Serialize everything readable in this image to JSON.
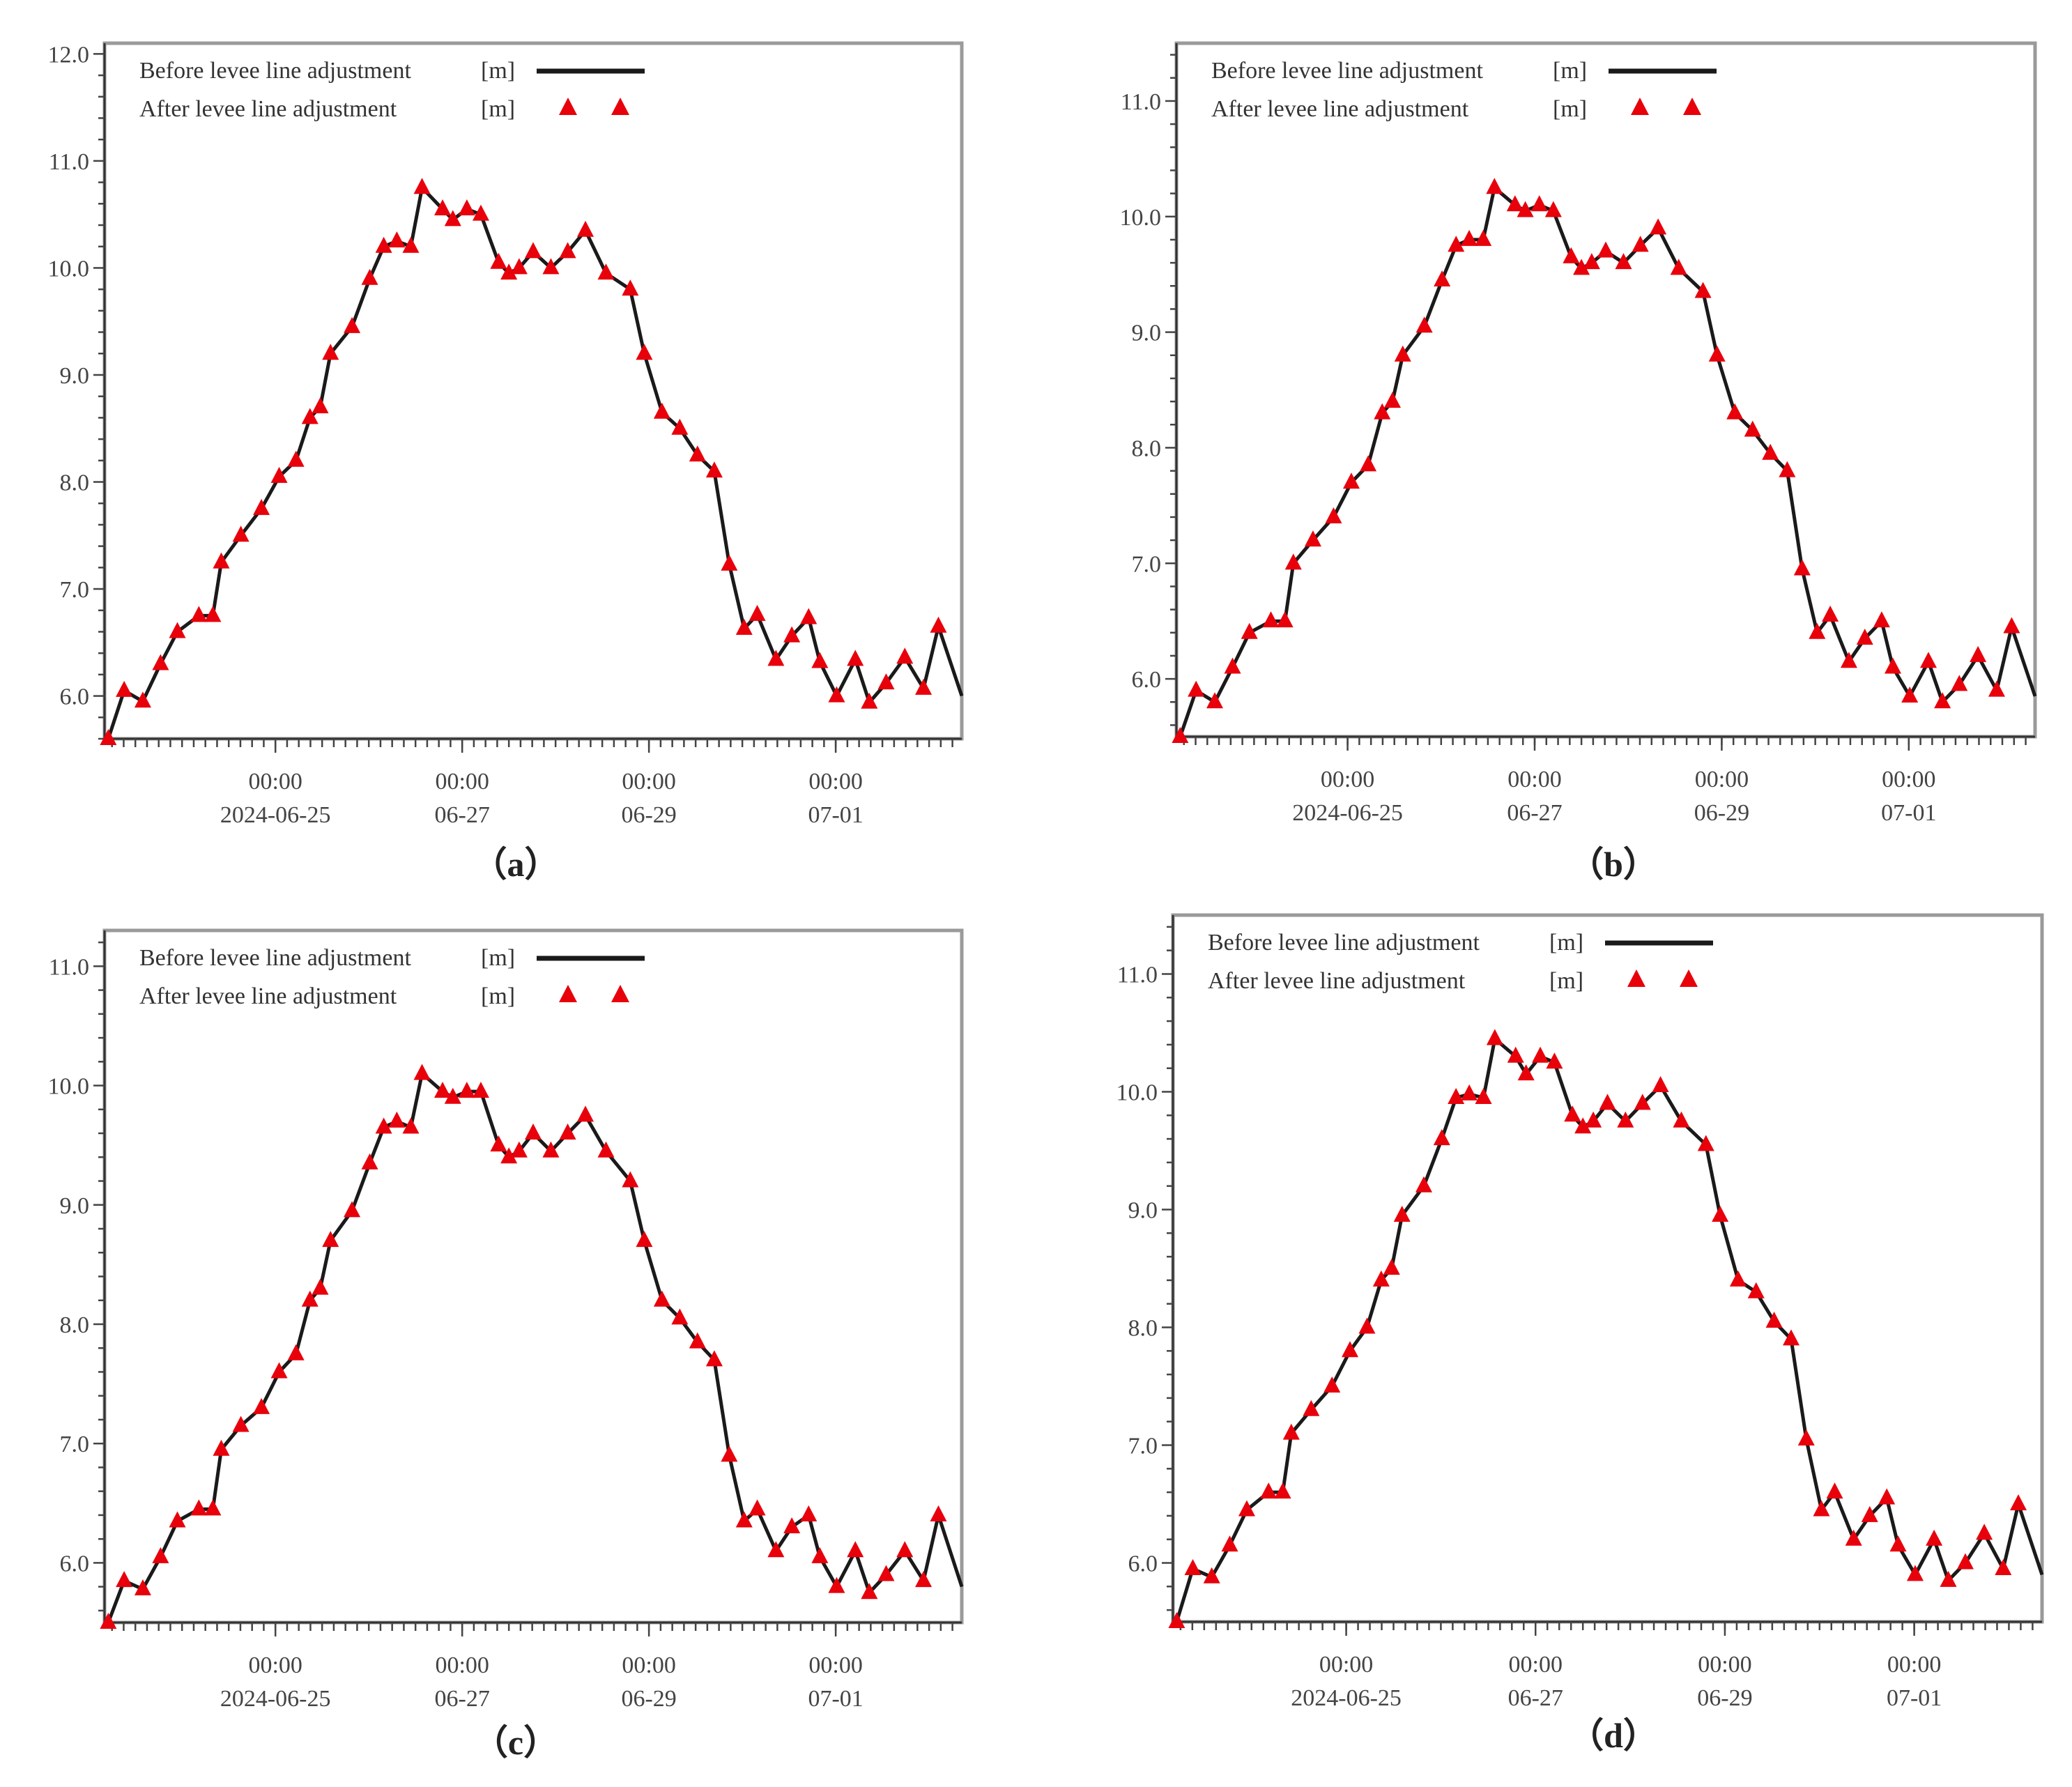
{
  "figure": {
    "captions": [
      "（a）",
      "（b）",
      "（c）",
      "（d）"
    ],
    "legend": {
      "before_label": "Before levee line adjustment",
      "before_unit": "[m]",
      "after_label": "After levee line adjustment",
      "after_unit": "[m]",
      "before_color": "#1a1a1a",
      "after_color": "#e8000b"
    },
    "x_ticks": [
      {
        "day": 1.83,
        "line1": "00:00",
        "line2": "2024-06-25"
      },
      {
        "day": 3.83,
        "line1": "00:00",
        "line2": "06-27"
      },
      {
        "day": 5.83,
        "line1": "00:00",
        "line2": "06-29"
      },
      {
        "day": 7.83,
        "line1": "00:00",
        "line2": "07-01"
      }
    ]
  },
  "chart_data": [
    {
      "type": "line",
      "panel": "a",
      "title": "（a）",
      "xlabel": "",
      "ylabel": "",
      "x_unit": "days from plot start (~2024-06-23 04:00)",
      "xlim": [
        0,
        9.18
      ],
      "ylim": [
        5.6,
        12.1
      ],
      "y_ticks": [
        6.0,
        7.0,
        8.0,
        9.0,
        10.0,
        11.0,
        12.0
      ],
      "x_tick_labels": [
        "00:00\n2024-06-25",
        "00:00\n06-27",
        "00:00\n06-29",
        "00:00\n07-01"
      ],
      "legend_position": "upper left",
      "grid": false,
      "x": [
        0.04,
        0.21,
        0.41,
        0.6,
        0.78,
        1.01,
        1.16,
        1.25,
        1.46,
        1.68,
        1.87,
        2.05,
        2.2,
        2.31,
        2.42,
        2.65,
        2.84,
        2.99,
        3.13,
        3.28,
        3.4,
        3.62,
        3.73,
        3.88,
        4.03,
        4.22,
        4.33,
        4.44,
        4.59,
        4.78,
        4.96,
        5.15,
        5.37,
        5.63,
        5.78,
        5.97,
        6.16,
        6.35,
        6.53,
        6.69,
        6.85,
        6.99,
        7.19,
        7.36,
        7.54,
        7.66,
        7.84,
        8.04,
        8.19,
        8.37,
        8.57,
        8.77,
        8.93
      ],
      "series": [
        {
          "name": "Before levee line adjustment [m]",
          "values": [
            5.6,
            6.05,
            5.95,
            6.3,
            6.6,
            6.75,
            6.75,
            7.25,
            7.5,
            7.75,
            8.05,
            8.2,
            8.6,
            8.7,
            9.2,
            9.45,
            9.9,
            10.2,
            10.25,
            10.2,
            10.75,
            10.55,
            10.45,
            10.55,
            10.5,
            10.05,
            9.95,
            10.0,
            10.15,
            10.0,
            10.15,
            10.35,
            9.95,
            9.8,
            9.2,
            8.65,
            8.5,
            8.25,
            8.1,
            7.23,
            6.63,
            6.76,
            6.34,
            6.56,
            6.73,
            6.32,
            6.0,
            6.34,
            5.94,
            6.12,
            6.36,
            6.07,
            6.65
          ]
        },
        {
          "name": "After levee line adjustment [m]",
          "values": [
            5.6,
            6.05,
            5.95,
            6.3,
            6.6,
            6.75,
            6.75,
            7.25,
            7.5,
            7.75,
            8.05,
            8.2,
            8.6,
            8.7,
            9.2,
            9.45,
            9.9,
            10.2,
            10.25,
            10.2,
            10.75,
            10.55,
            10.45,
            10.55,
            10.5,
            10.05,
            9.95,
            10.0,
            10.15,
            10.0,
            10.15,
            10.35,
            9.95,
            9.8,
            9.2,
            8.65,
            8.5,
            8.25,
            8.1,
            7.23,
            6.63,
            6.76,
            6.34,
            6.56,
            6.73,
            6.32,
            6.0,
            6.34,
            5.94,
            6.12,
            6.36,
            6.07,
            6.65
          ]
        }
      ],
      "end_value": 6.0
    },
    {
      "type": "line",
      "panel": "b",
      "title": "（b）",
      "xlabel": "",
      "ylabel": "",
      "xlim": [
        0,
        9.18
      ],
      "ylim": [
        5.5,
        11.5
      ],
      "y_ticks": [
        6.0,
        7.0,
        8.0,
        9.0,
        10.0,
        11.0
      ],
      "x_tick_labels": [
        "00:00\n2024-06-25",
        "00:00\n06-27",
        "00:00\n06-29",
        "00:00\n07-01"
      ],
      "legend_position": "upper left",
      "grid": false,
      "x": [
        0.04,
        0.21,
        0.41,
        0.6,
        0.78,
        1.01,
        1.16,
        1.25,
        1.46,
        1.68,
        1.87,
        2.05,
        2.2,
        2.31,
        2.42,
        2.65,
        2.84,
        2.99,
        3.13,
        3.28,
        3.4,
        3.62,
        3.73,
        3.88,
        4.03,
        4.22,
        4.33,
        4.44,
        4.59,
        4.78,
        4.96,
        5.15,
        5.37,
        5.63,
        5.78,
        5.97,
        6.16,
        6.35,
        6.53,
        6.69,
        6.85,
        6.99,
        7.19,
        7.36,
        7.54,
        7.66,
        7.84,
        8.04,
        8.19,
        8.37,
        8.57,
        8.77,
        8.93
      ],
      "series": [
        {
          "name": "Before levee line adjustment [m]",
          "values": [
            5.5,
            5.9,
            5.8,
            6.1,
            6.4,
            6.5,
            6.5,
            7.0,
            7.2,
            7.4,
            7.7,
            7.85,
            8.3,
            8.4,
            8.8,
            9.05,
            9.45,
            9.75,
            9.8,
            9.8,
            10.25,
            10.1,
            10.05,
            10.1,
            10.05,
            9.65,
            9.55,
            9.6,
            9.7,
            9.6,
            9.75,
            9.9,
            9.55,
            9.35,
            8.8,
            8.3,
            8.15,
            7.95,
            7.8,
            6.95,
            6.4,
            6.55,
            6.15,
            6.35,
            6.5,
            6.1,
            5.85,
            6.15,
            5.8,
            5.95,
            6.2,
            5.9,
            6.45
          ]
        },
        {
          "name": "After levee line adjustment [m]",
          "values": [
            5.5,
            5.9,
            5.8,
            6.1,
            6.4,
            6.5,
            6.5,
            7.0,
            7.2,
            7.4,
            7.7,
            7.85,
            8.3,
            8.4,
            8.8,
            9.05,
            9.45,
            9.75,
            9.8,
            9.8,
            10.25,
            10.1,
            10.05,
            10.1,
            10.05,
            9.65,
            9.55,
            9.6,
            9.7,
            9.6,
            9.75,
            9.9,
            9.55,
            9.35,
            8.8,
            8.3,
            8.15,
            7.95,
            7.8,
            6.95,
            6.4,
            6.55,
            6.15,
            6.35,
            6.5,
            6.1,
            5.85,
            6.15,
            5.8,
            5.95,
            6.2,
            5.9,
            6.45
          ]
        }
      ],
      "end_value": 5.85
    },
    {
      "type": "line",
      "panel": "c",
      "title": "（c）",
      "xlabel": "",
      "ylabel": "",
      "xlim": [
        0,
        9.18
      ],
      "ylim": [
        5.5,
        11.3
      ],
      "y_ticks": [
        6.0,
        7.0,
        8.0,
        9.0,
        10.0,
        11.0
      ],
      "x_tick_labels": [
        "00:00\n2024-06-25",
        "00:00\n06-27",
        "00:00\n06-29",
        "00:00\n07-01"
      ],
      "legend_position": "upper left",
      "grid": false,
      "x": [
        0.04,
        0.21,
        0.41,
        0.6,
        0.78,
        1.01,
        1.16,
        1.25,
        1.46,
        1.68,
        1.87,
        2.05,
        2.2,
        2.31,
        2.42,
        2.65,
        2.84,
        2.99,
        3.13,
        3.28,
        3.4,
        3.62,
        3.73,
        3.88,
        4.03,
        4.22,
        4.33,
        4.44,
        4.59,
        4.78,
        4.96,
        5.15,
        5.37,
        5.63,
        5.78,
        5.97,
        6.16,
        6.35,
        6.53,
        6.69,
        6.85,
        6.99,
        7.19,
        7.36,
        7.54,
        7.66,
        7.84,
        8.04,
        8.19,
        8.37,
        8.57,
        8.77,
        8.93
      ],
      "series": [
        {
          "name": "Before levee line adjustment [m]",
          "values": [
            5.5,
            5.85,
            5.78,
            6.05,
            6.35,
            6.45,
            6.45,
            6.95,
            7.15,
            7.3,
            7.6,
            7.75,
            8.2,
            8.3,
            8.7,
            8.95,
            9.35,
            9.65,
            9.7,
            9.65,
            10.1,
            9.95,
            9.9,
            9.95,
            9.95,
            9.5,
            9.4,
            9.45,
            9.6,
            9.45,
            9.6,
            9.75,
            9.45,
            9.2,
            8.7,
            8.2,
            8.05,
            7.85,
            7.7,
            6.9,
            6.35,
            6.45,
            6.1,
            6.3,
            6.4,
            6.05,
            5.8,
            6.1,
            5.75,
            5.9,
            6.1,
            5.85,
            6.4
          ]
        },
        {
          "name": "After levee line adjustment [m]",
          "values": [
            5.5,
            5.85,
            5.78,
            6.05,
            6.35,
            6.45,
            6.45,
            6.95,
            7.15,
            7.3,
            7.6,
            7.75,
            8.2,
            8.3,
            8.7,
            8.95,
            9.35,
            9.65,
            9.7,
            9.65,
            10.1,
            9.95,
            9.9,
            9.95,
            9.95,
            9.5,
            9.4,
            9.45,
            9.6,
            9.45,
            9.6,
            9.75,
            9.45,
            9.2,
            8.7,
            8.2,
            8.05,
            7.85,
            7.7,
            6.9,
            6.35,
            6.45,
            6.1,
            6.3,
            6.4,
            6.05,
            5.8,
            6.1,
            5.75,
            5.9,
            6.1,
            5.85,
            6.4
          ]
        }
      ],
      "end_value": 5.8
    },
    {
      "type": "line",
      "panel": "d",
      "title": "（d）",
      "xlabel": "",
      "ylabel": "",
      "xlim": [
        0,
        9.18
      ],
      "ylim": [
        5.5,
        11.5
      ],
      "y_ticks": [
        6.0,
        7.0,
        8.0,
        9.0,
        10.0,
        11.0
      ],
      "x_tick_labels": [
        "00:00\n2024-06-25",
        "00:00\n06-27",
        "00:00\n06-29",
        "00:00\n07-01"
      ],
      "legend_position": "upper left",
      "grid": false,
      "x": [
        0.04,
        0.21,
        0.41,
        0.6,
        0.78,
        1.01,
        1.16,
        1.25,
        1.46,
        1.68,
        1.87,
        2.05,
        2.2,
        2.31,
        2.42,
        2.65,
        2.84,
        2.99,
        3.13,
        3.28,
        3.4,
        3.62,
        3.73,
        3.88,
        4.03,
        4.22,
        4.33,
        4.44,
        4.59,
        4.78,
        4.96,
        5.15,
        5.37,
        5.63,
        5.78,
        5.97,
        6.16,
        6.35,
        6.53,
        6.69,
        6.85,
        6.99,
        7.19,
        7.36,
        7.54,
        7.66,
        7.84,
        8.04,
        8.19,
        8.37,
        8.57,
        8.77,
        8.93
      ],
      "series": [
        {
          "name": "Before levee line adjustment [m]",
          "values": [
            5.5,
            5.95,
            5.88,
            6.15,
            6.45,
            6.6,
            6.6,
            7.1,
            7.3,
            7.5,
            7.8,
            8.0,
            8.4,
            8.5,
            8.95,
            9.2,
            9.6,
            9.95,
            9.98,
            9.95,
            10.45,
            10.3,
            10.15,
            10.3,
            10.25,
            9.8,
            9.7,
            9.75,
            9.9,
            9.75,
            9.9,
            10.05,
            9.75,
            9.55,
            8.95,
            8.4,
            8.3,
            8.05,
            7.9,
            7.05,
            6.45,
            6.6,
            6.2,
            6.4,
            6.55,
            6.15,
            5.9,
            6.2,
            5.85,
            6.0,
            6.25,
            5.95,
            6.5
          ]
        },
        {
          "name": "After levee line adjustment [m]",
          "values": [
            5.5,
            5.95,
            5.88,
            6.15,
            6.45,
            6.6,
            6.6,
            7.1,
            7.3,
            7.5,
            7.8,
            8.0,
            8.4,
            8.5,
            8.95,
            9.2,
            9.6,
            9.95,
            9.98,
            9.95,
            10.45,
            10.3,
            10.15,
            10.3,
            10.25,
            9.8,
            9.7,
            9.75,
            9.9,
            9.75,
            9.9,
            10.05,
            9.75,
            9.55,
            8.95,
            8.4,
            8.3,
            8.05,
            7.9,
            7.05,
            6.45,
            6.6,
            6.2,
            6.4,
            6.55,
            6.15,
            5.9,
            6.2,
            5.85,
            6.0,
            6.25,
            5.95,
            6.5
          ]
        }
      ],
      "end_value": 5.9
    }
  ]
}
